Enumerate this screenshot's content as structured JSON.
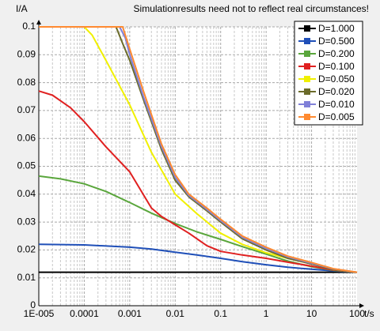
{
  "chart_data": {
    "type": "line",
    "title": "Simulationresults need not to reflect real circumstances!",
    "ylabel": "I/A",
    "xlabel": "t/s",
    "xscale": "log",
    "xlim": [
      1e-05,
      100
    ],
    "ylim": [
      0,
      0.1
    ],
    "grid": true,
    "legend_position": "top-right",
    "x_ticks": [
      "1E-005",
      "0.0001",
      "0.001",
      "0.01",
      "0.1",
      "1",
      "10",
      "100"
    ],
    "y_ticks": [
      "0",
      "0.01",
      "0.02",
      "0.03",
      "0.04",
      "0.05",
      "0.06",
      "0.07",
      "0.08",
      "0.09",
      "0.1"
    ],
    "series": [
      {
        "name": "D=1.000",
        "color": "#000000",
        "points": [
          [
            1e-05,
            0.012
          ],
          [
            0.0001,
            0.012
          ],
          [
            0.001,
            0.012
          ],
          [
            0.01,
            0.012
          ],
          [
            0.1,
            0.012
          ],
          [
            1,
            0.012
          ],
          [
            10,
            0.012
          ],
          [
            100,
            0.012
          ]
        ]
      },
      {
        "name": "D=0.500",
        "color": "#1f4fb8",
        "points": [
          [
            1e-05,
            0.022
          ],
          [
            0.0001,
            0.0218
          ],
          [
            0.001,
            0.021
          ],
          [
            0.003,
            0.0203
          ],
          [
            0.01,
            0.0192
          ],
          [
            0.03,
            0.0182
          ],
          [
            0.1,
            0.017
          ],
          [
            0.3,
            0.0158
          ],
          [
            1,
            0.0147
          ],
          [
            3,
            0.0138
          ],
          [
            10,
            0.0131
          ],
          [
            30,
            0.0125
          ],
          [
            100,
            0.012
          ]
        ]
      },
      {
        "name": "D=0.200",
        "color": "#5aa63c",
        "points": [
          [
            1e-05,
            0.0465
          ],
          [
            3e-05,
            0.0455
          ],
          [
            0.0001,
            0.0437
          ],
          [
            0.0003,
            0.041
          ],
          [
            0.001,
            0.037
          ],
          [
            0.003,
            0.0332
          ],
          [
            0.01,
            0.0295
          ],
          [
            0.03,
            0.0265
          ],
          [
            0.1,
            0.0238
          ],
          [
            0.3,
            0.0212
          ],
          [
            1,
            0.0185
          ],
          [
            3,
            0.016
          ],
          [
            10,
            0.014
          ],
          [
            30,
            0.0127
          ],
          [
            100,
            0.012
          ]
        ]
      },
      {
        "name": "D=0.100",
        "color": "#e02020",
        "points": [
          [
            1e-05,
            0.077
          ],
          [
            2e-05,
            0.0755
          ],
          [
            5e-05,
            0.071
          ],
          [
            0.0001,
            0.066
          ],
          [
            0.0003,
            0.057
          ],
          [
            0.001,
            0.048
          ],
          [
            0.003,
            0.035
          ],
          [
            0.005,
            0.032
          ],
          [
            0.01,
            0.029
          ],
          [
            0.02,
            0.026
          ],
          [
            0.05,
            0.0215
          ],
          [
            0.1,
            0.0195
          ],
          [
            0.3,
            0.0182
          ],
          [
            1,
            0.017
          ],
          [
            3,
            0.0156
          ],
          [
            10,
            0.0142
          ],
          [
            30,
            0.0128
          ],
          [
            100,
            0.012
          ]
        ]
      },
      {
        "name": "D=0.050",
        "color": "#f0f000",
        "points": [
          [
            1e-05,
            0.1
          ],
          [
            0.0001,
            0.1
          ],
          [
            0.00015,
            0.097
          ],
          [
            0.0003,
            0.088
          ],
          [
            0.001,
            0.072
          ],
          [
            0.003,
            0.055
          ],
          [
            0.01,
            0.04
          ],
          [
            0.03,
            0.033
          ],
          [
            0.1,
            0.026
          ],
          [
            0.3,
            0.022
          ],
          [
            1,
            0.019
          ],
          [
            3,
            0.017
          ],
          [
            10,
            0.015
          ],
          [
            30,
            0.013
          ],
          [
            100,
            0.012
          ]
        ]
      },
      {
        "name": "D=0.020",
        "color": "#6b6b2a",
        "points": [
          [
            1e-05,
            0.1
          ],
          [
            0.0005,
            0.1
          ],
          [
            0.0007,
            0.094
          ],
          [
            0.001,
            0.088
          ],
          [
            0.002,
            0.074
          ],
          [
            0.005,
            0.056
          ],
          [
            0.01,
            0.045
          ],
          [
            0.02,
            0.039
          ],
          [
            0.05,
            0.034
          ],
          [
            0.1,
            0.03
          ],
          [
            0.3,
            0.024
          ],
          [
            1,
            0.02
          ],
          [
            3,
            0.017
          ],
          [
            10,
            0.015
          ],
          [
            30,
            0.013
          ],
          [
            100,
            0.012
          ]
        ]
      },
      {
        "name": "D=0.010",
        "color": "#8080d8",
        "points": [
          [
            1e-05,
            0.1
          ],
          [
            0.0006,
            0.1
          ],
          [
            0.0008,
            0.096
          ],
          [
            0.001,
            0.09
          ],
          [
            0.002,
            0.075
          ],
          [
            0.005,
            0.057
          ],
          [
            0.01,
            0.046
          ],
          [
            0.02,
            0.0395
          ],
          [
            0.05,
            0.0345
          ],
          [
            0.1,
            0.0305
          ],
          [
            0.3,
            0.0245
          ],
          [
            1,
            0.0205
          ],
          [
            3,
            0.0175
          ],
          [
            10,
            0.0152
          ],
          [
            30,
            0.0132
          ],
          [
            100,
            0.012
          ]
        ]
      },
      {
        "name": "D=0.005",
        "color": "#ff8a30",
        "points": [
          [
            1e-05,
            0.1
          ],
          [
            0.0007,
            0.1
          ],
          [
            0.001,
            0.092
          ],
          [
            0.002,
            0.077
          ],
          [
            0.005,
            0.058
          ],
          [
            0.01,
            0.047
          ],
          [
            0.02,
            0.04
          ],
          [
            0.05,
            0.035
          ],
          [
            0.1,
            0.031
          ],
          [
            0.3,
            0.025
          ],
          [
            1,
            0.021
          ],
          [
            3,
            0.0178
          ],
          [
            10,
            0.0155
          ],
          [
            30,
            0.0133
          ],
          [
            100,
            0.012
          ]
        ]
      }
    ]
  }
}
